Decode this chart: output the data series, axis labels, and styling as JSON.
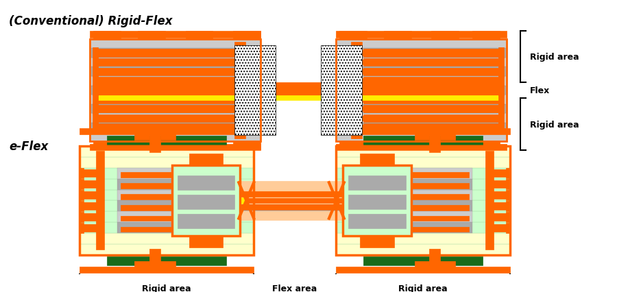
{
  "title1": "(Conventional) Rigid-Flex",
  "title2": "e-Flex",
  "orange": "#FF6600",
  "gray": "#AAAAAA",
  "light_gray": "#CCCCCC",
  "yellow": "#FFEE00",
  "light_yellow": "#FFFFCC",
  "light_green": "#CCFFCC",
  "dark_green": "#1A6B1A",
  "peach": "#FFCC99",
  "white": "#FFFFFF",
  "black": "#000000",
  "label_rigid": "Rigid area",
  "label_flex": "Flex",
  "label_flex_area": "Flex area",
  "fig_width": 9.0,
  "fig_height": 4.27
}
